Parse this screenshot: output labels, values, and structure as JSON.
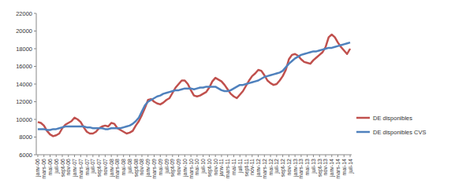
{
  "chart_data": {
    "type": "line",
    "categories": [
      "janv-06",
      null,
      "mars-06",
      null,
      "mai-06",
      null,
      "juil-06",
      null,
      "sept-06",
      null,
      "nov-06",
      null,
      "janv-07",
      null,
      "mars-07",
      null,
      "mai-07",
      null,
      "juil-07",
      null,
      "sept-07",
      null,
      "nov-07",
      null,
      "janv-08",
      null,
      "mars-08",
      null,
      "mai-08",
      null,
      "juil-08",
      null,
      "sept-08",
      null,
      "nov-08",
      null,
      "janv-09",
      null,
      "mars-09",
      null,
      "mai-09",
      null,
      "juil-09",
      null,
      "sept-09",
      null,
      "nov-09",
      null,
      "janv-10",
      null,
      "mars-10",
      null,
      "mai-10",
      null,
      "juil-10",
      null,
      "sept-10",
      null,
      "nov-10",
      null,
      "janv-11",
      null,
      "mars-11",
      null,
      "mai-11",
      null,
      "juil-11",
      null,
      "sept-11",
      null,
      "nov-11",
      null,
      "janv-12",
      null,
      "mars-12",
      null,
      "mai-12",
      null,
      "juil-12",
      null,
      "sept-12",
      null,
      "nov-12",
      null,
      "janv-13",
      null,
      "mars-13",
      null,
      "mai-13",
      null,
      "juil-13",
      null,
      "sept-13",
      null,
      "nov-13",
      null,
      "janv-14",
      null,
      "mars-14",
      null,
      "mai-14",
      null,
      "juil-14"
    ],
    "series": [
      {
        "name": "DE disponibles",
        "color": "#c0504d",
        "values": [
          9700,
          9600,
          9300,
          8700,
          8300,
          8100,
          8200,
          8400,
          9000,
          9400,
          9600,
          9800,
          10200,
          10000,
          9700,
          9100,
          8600,
          8400,
          8400,
          8600,
          9000,
          9200,
          9300,
          9200,
          9600,
          9500,
          9000,
          8800,
          8600,
          8400,
          8500,
          8700,
          9300,
          9800,
          10500,
          11300,
          12200,
          12300,
          12000,
          11800,
          11700,
          11900,
          12200,
          12400,
          13000,
          13600,
          14000,
          14400,
          14400,
          14000,
          13300,
          12700,
          12600,
          12700,
          12900,
          13100,
          13600,
          14300,
          14700,
          14500,
          14300,
          13900,
          13400,
          12900,
          12600,
          12400,
          12800,
          13200,
          13800,
          14400,
          14900,
          15200,
          15600,
          15500,
          15000,
          14400,
          14100,
          13900,
          14000,
          14400,
          14900,
          15600,
          16800,
          17300,
          17400,
          17200,
          16800,
          16500,
          16400,
          16300,
          16700,
          17000,
          17300,
          17600,
          18200,
          19300,
          19600,
          19300,
          18700,
          18200,
          17800,
          17400,
          18000
        ]
      },
      {
        "name": "DE disponibles CVS",
        "color": "#4f81bd",
        "values": [
          8900,
          8900,
          8900,
          8800,
          8800,
          8900,
          8900,
          9000,
          9100,
          9200,
          9200,
          9200,
          9200,
          9200,
          9200,
          9200,
          9100,
          9100,
          9000,
          9000,
          9000,
          9000,
          8900,
          8900,
          9000,
          9000,
          9000,
          9000,
          9100,
          9200,
          9300,
          9500,
          9800,
          10200,
          10900,
          11600,
          12000,
          12200,
          12400,
          12600,
          12700,
          12900,
          13000,
          13100,
          13200,
          13300,
          13300,
          13400,
          13500,
          13500,
          13500,
          13400,
          13500,
          13600,
          13600,
          13700,
          13700,
          13700,
          13700,
          13500,
          13300,
          13200,
          13200,
          13300,
          13500,
          13700,
          13900,
          13900,
          14000,
          14100,
          14200,
          14300,
          14400,
          14600,
          14800,
          14900,
          15000,
          15100,
          15200,
          15300,
          15500,
          15900,
          16300,
          16600,
          16900,
          17100,
          17300,
          17400,
          17500,
          17600,
          17700,
          17700,
          17800,
          17900,
          18000,
          18100,
          18100,
          18200,
          18300,
          18400,
          18500,
          18600,
          18700
        ]
      }
    ],
    "ylim": [
      6000,
      22000
    ],
    "yticks": [
      6000,
      8000,
      10000,
      12000,
      14000,
      16000,
      18000,
      20000,
      22000
    ],
    "grid": false,
    "legend": "right"
  }
}
